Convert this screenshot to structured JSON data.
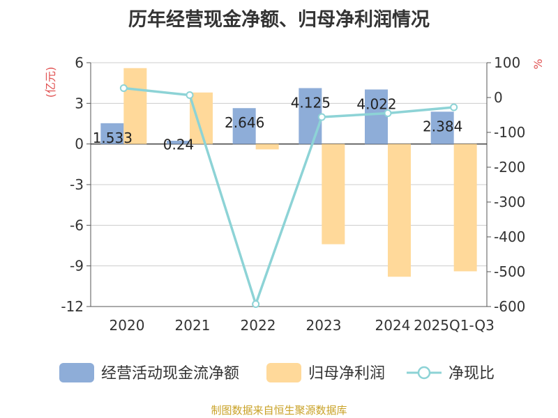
{
  "title": "历年经营现金净额、归母净利润情况",
  "source_text": "制图数据来自恒生聚源数据库",
  "colors": {
    "cash": "#8eadd8",
    "profit": "#ffd99a",
    "ratio": "#8dd3d6",
    "axis_unit": "#e05050"
  },
  "chart_data": {
    "type": "bar",
    "categories": [
      "2020",
      "2021",
      "2022",
      "2023",
      "2024",
      "2025Q1-Q3"
    ],
    "series": [
      {
        "name": "经营活动现金流净额",
        "kind": "bar",
        "axis": "left",
        "values": [
          1.533,
          0.24,
          2.646,
          4.125,
          4.022,
          2.384
        ],
        "labels": [
          "1.533",
          "0.24",
          "2.646",
          "4.125",
          "4.022",
          "2.384"
        ]
      },
      {
        "name": "归母净利润",
        "kind": "bar",
        "axis": "left",
        "values": [
          5.6,
          3.8,
          -0.4,
          -7.4,
          -9.8,
          -9.4
        ]
      },
      {
        "name": "净现比",
        "kind": "line",
        "axis": "right",
        "values": [
          27,
          7,
          -593,
          -56,
          -45,
          -28
        ]
      }
    ],
    "y_left": {
      "label": "(亿元)",
      "min": -12,
      "max": 6,
      "ticks": [
        6,
        3,
        0,
        -3,
        -6,
        -9,
        -12
      ]
    },
    "y_right": {
      "label": "%",
      "min": -600,
      "max": 100,
      "ticks": [
        100,
        0,
        -100,
        -200,
        -300,
        -400,
        -500,
        -600
      ]
    },
    "grid": true,
    "legend_position": "bottom"
  }
}
